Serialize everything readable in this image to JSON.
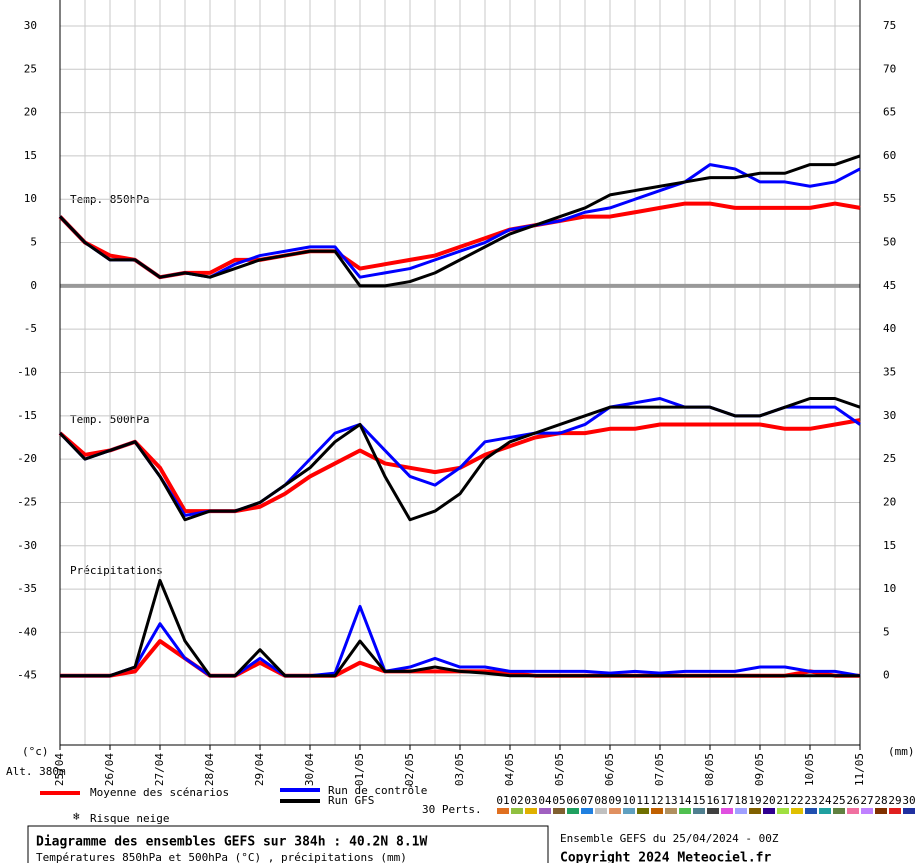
{
  "chart_data": {
    "type": "line",
    "xlabel": "Alt. 380m",
    "ylabel": "(°c)",
    "y2label": "(mm)",
    "annotations": [
      "Temp. 850hPa",
      "Temp. 500hPa",
      "Précipitations"
    ],
    "x": [
      0,
      12,
      24,
      36,
      48,
      60,
      72,
      84,
      96,
      108,
      120,
      132,
      144,
      156,
      168,
      180,
      192,
      204,
      216,
      228,
      240,
      252,
      264,
      276,
      288,
      300,
      312,
      324,
      336,
      348,
      360,
      372,
      384
    ],
    "xlim": [
      0,
      384
    ],
    "xticks": [
      {
        "value": 0,
        "label": "25/04"
      },
      {
        "value": 24,
        "label": "26/04"
      },
      {
        "value": 48,
        "label": "27/04"
      },
      {
        "value": 72,
        "label": "28/04"
      },
      {
        "value": 96,
        "label": "29/04"
      },
      {
        "value": 120,
        "label": "30/04"
      },
      {
        "value": 144,
        "label": "01/05"
      },
      {
        "value": 168,
        "label": "02/05"
      },
      {
        "value": 192,
        "label": "03/05"
      },
      {
        "value": 216,
        "label": "04/05"
      },
      {
        "value": 240,
        "label": "05/05"
      },
      {
        "value": 264,
        "label": "06/05"
      },
      {
        "value": 288,
        "label": "07/05"
      },
      {
        "value": 312,
        "label": "08/05"
      },
      {
        "value": 336,
        "label": "09/05"
      },
      {
        "value": 360,
        "label": "10/05"
      },
      {
        "value": 384,
        "label": "11/05"
      }
    ],
    "ylim": [
      -53,
      33
    ],
    "yticks": [
      -45,
      -40,
      -35,
      -30,
      -25,
      -20,
      -15,
      -10,
      -5,
      0,
      5,
      10,
      15,
      20,
      25,
      30
    ],
    "y2lim": [
      -8,
      78
    ],
    "y2ticks": [
      0,
      5,
      10,
      15,
      20,
      25,
      30,
      35,
      40,
      45,
      50,
      55,
      60,
      65,
      70,
      75
    ],
    "grid": true,
    "series": [
      {
        "name": "Moyenne des scénarios",
        "color": "#ff0000",
        "values": [
          8,
          5,
          3.5,
          3,
          1,
          1.5,
          1.5,
          3,
          3,
          3.5,
          4,
          4,
          2,
          2.5,
          3,
          3.5,
          4.5,
          5.5,
          6.5,
          7,
          7.5,
          8,
          8,
          8.5,
          9,
          9.5,
          9.5,
          9,
          9,
          9,
          9,
          9.5,
          9
        ]
      },
      {
        "name": "Run de contrôle",
        "color": "#0000ff",
        "values": [
          8,
          5,
          3,
          3,
          1,
          1.5,
          1,
          2.5,
          3.5,
          4,
          4.5,
          4.5,
          1,
          1.5,
          2,
          3,
          4,
          5,
          6.5,
          7,
          7.5,
          8.5,
          9,
          10,
          11,
          12,
          14,
          13.5,
          12,
          12,
          11.5,
          12,
          13.5
        ]
      },
      {
        "name": "Run GFS",
        "color": "#000000",
        "values": [
          8,
          5,
          3,
          3,
          1,
          1.5,
          1,
          2,
          3,
          3.5,
          4,
          4,
          0,
          0,
          0.5,
          1.5,
          3,
          4.5,
          6,
          7,
          8,
          9,
          10.5,
          11,
          11.5,
          12,
          12.5,
          12.5,
          13,
          13,
          14,
          14,
          15
        ]
      },
      {
        "color": "#ff0000",
        "values": [
          -17,
          -19.5,
          -19,
          -18,
          -21,
          -26,
          -26,
          -26,
          -25.5,
          -24,
          -22,
          -20.5,
          -19,
          -20.5,
          -21,
          -21.5,
          -21,
          -19.5,
          -18.5,
          -17.5,
          -17,
          -17,
          -16.5,
          -16.5,
          -16,
          -16,
          -16,
          -16,
          -16,
          -16.5,
          -16.5,
          -16,
          -15.5
        ]
      },
      {
        "color": "#0000ff",
        "values": [
          -17,
          -20,
          -19,
          -18,
          -22,
          -26.5,
          -26,
          -26,
          -25,
          -23,
          -20,
          -17,
          -16,
          -19,
          -22,
          -23,
          -21,
          -18,
          -17.5,
          -17,
          -17,
          -16,
          -14,
          -13.5,
          -13,
          -14,
          -14,
          -15,
          -15,
          -14,
          -14,
          -14,
          -16
        ]
      },
      {
        "color": "#000000",
        "values": [
          -17,
          -20,
          -19,
          -18,
          -22,
          -27,
          -26,
          -26,
          -25,
          -23,
          -21,
          -18,
          -16,
          -22,
          -27,
          -26,
          -24,
          -20,
          -18,
          -17,
          -16,
          -15,
          -14,
          -14,
          -14,
          -14,
          -14,
          -15,
          -15,
          -14,
          -13,
          -13,
          -14
        ]
      },
      {
        "color": "#ff0000",
        "axis": "y2",
        "values": [
          0,
          0,
          0,
          0.5,
          4,
          2,
          0,
          0,
          1.5,
          0,
          0,
          0,
          1.5,
          0.5,
          0.5,
          0.5,
          0.5,
          0.5,
          0.3,
          0,
          0,
          0,
          0,
          0,
          0,
          0,
          0,
          0,
          0,
          0,
          0.5,
          0,
          0
        ]
      },
      {
        "color": "#0000ff",
        "axis": "y2",
        "values": [
          0,
          0,
          0,
          1,
          6,
          2,
          0,
          0,
          2,
          0,
          0,
          0.3,
          8,
          0.5,
          1,
          2,
          1,
          1,
          0.5,
          0.5,
          0.5,
          0.5,
          0.3,
          0.5,
          0.3,
          0.5,
          0.5,
          0.5,
          1,
          1,
          0.5,
          0.5,
          0
        ]
      },
      {
        "color": "#000000",
        "axis": "y2",
        "values": [
          0,
          0,
          0,
          1,
          11,
          4,
          0,
          0,
          3,
          0,
          0,
          0,
          4,
          0.5,
          0.5,
          1,
          0.5,
          0.3,
          0,
          0,
          0,
          0,
          0,
          0,
          0,
          0,
          0,
          0,
          0,
          0,
          0,
          0,
          0
        ]
      }
    ],
    "snow_label": "Risque neige",
    "perturbations": {
      "label": "30 Perts.",
      "names": [
        "01",
        "02",
        "03",
        "04",
        "05",
        "06",
        "07",
        "08",
        "09",
        "10",
        "11",
        "12",
        "13",
        "14",
        "15",
        "16",
        "17",
        "18",
        "19",
        "20",
        "21",
        "22",
        "23",
        "24",
        "25",
        "26",
        "27",
        "28",
        "29",
        "30"
      ],
      "colors": [
        "#e07020",
        "#90c040",
        "#e0b000",
        "#a060c0",
        "#806030",
        "#20a060",
        "#2080e0",
        "#c0c0c0",
        "#e09060",
        "#60a0c0",
        "#707000",
        "#c06000",
        "#b09060",
        "#50c050",
        "#508090",
        "#404040",
        "#e050e0",
        "#a0a0ff",
        "#806000",
        "#300090",
        "#a0e040",
        "#e0c000",
        "#2050b0",
        "#20a0a0",
        "#608040",
        "#f070a0",
        "#c080ff",
        "#803000",
        "#e02020",
        "#2030a0"
      ]
    },
    "footer": {
      "title": "Diagramme des ensembles GEFS sur 384h : 40.2N 8.1W",
      "subtitle": "Températures 850hPa et 500hPa (°C) , précipitations (mm)",
      "run": "Ensemble GEFS du 25/04/2024 - 00Z",
      "copyright": "Copyright 2024 Meteociel.fr"
    }
  }
}
